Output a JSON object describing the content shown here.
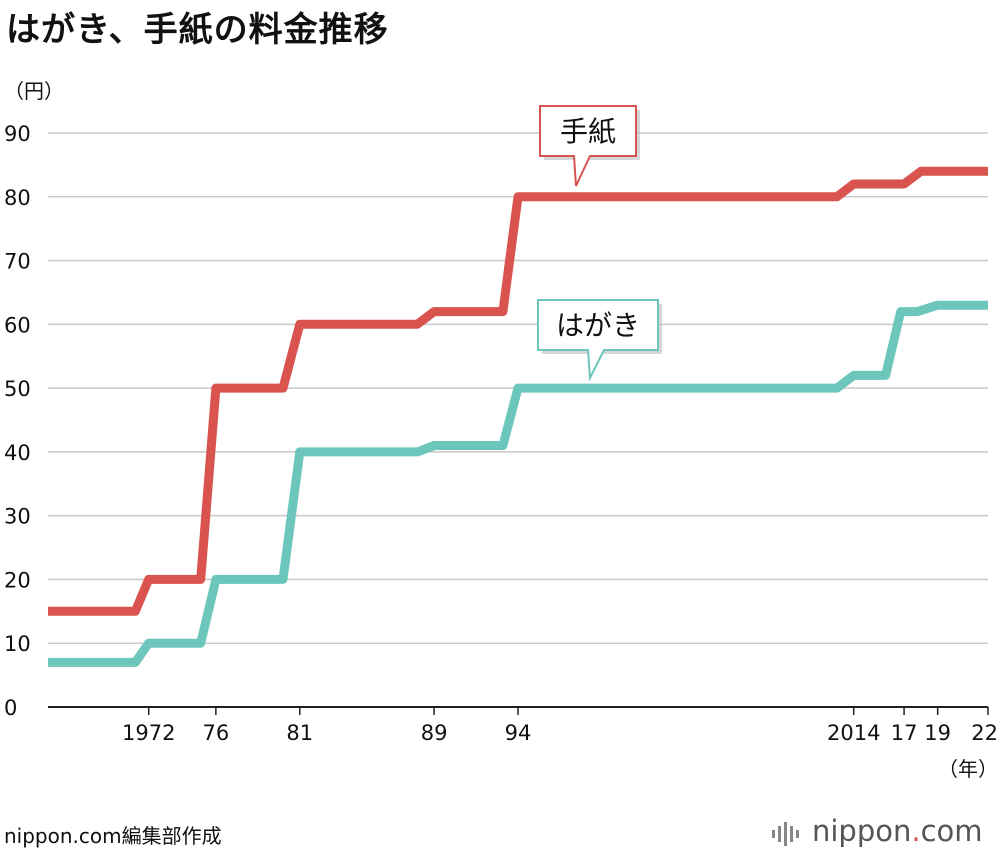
{
  "chart_data": {
    "type": "line",
    "title": "はがき、手紙の料金推移",
    "ylabel": "（円）",
    "xlabel": "（年）",
    "ylim": [
      0,
      90
    ],
    "yticks": [
      0,
      10,
      20,
      30,
      40,
      50,
      60,
      70,
      80,
      90
    ],
    "xlim": [
      1966,
      2022
    ],
    "xticks": [
      {
        "year": 1972,
        "label": "1972"
      },
      {
        "year": 1976,
        "label": "76"
      },
      {
        "year": 1981,
        "label": "81"
      },
      {
        "year": 1989,
        "label": "89"
      },
      {
        "year": 1994,
        "label": "94"
      },
      {
        "year": 2014,
        "label": "2014"
      },
      {
        "year": 2017,
        "label": "17"
      },
      {
        "year": 2019,
        "label": "19"
      },
      {
        "year": 2022,
        "label": "22"
      }
    ],
    "grid": true,
    "series": [
      {
        "name": "手紙",
        "color": "#d9534f",
        "points": [
          [
            1966,
            15
          ],
          [
            1971.2,
            15
          ],
          [
            1972,
            20
          ],
          [
            1975.1,
            20
          ],
          [
            1976,
            50
          ],
          [
            1980,
            50
          ],
          [
            1981,
            60
          ],
          [
            1988,
            60
          ],
          [
            1989,
            62
          ],
          [
            1993.1,
            62
          ],
          [
            1994,
            80
          ],
          [
            2013,
            80
          ],
          [
            2014,
            82
          ],
          [
            2017,
            82
          ],
          [
            2018,
            84
          ],
          [
            2022,
            84
          ]
        ]
      },
      {
        "name": "はがき",
        "color": "#6cc6bb",
        "points": [
          [
            1966,
            7
          ],
          [
            1971.2,
            7
          ],
          [
            1972,
            10
          ],
          [
            1975.1,
            10
          ],
          [
            1976,
            20
          ],
          [
            1980,
            20
          ],
          [
            1981,
            40
          ],
          [
            1988,
            40
          ],
          [
            1989,
            41
          ],
          [
            1993.1,
            41
          ],
          [
            1994,
            50
          ],
          [
            2013,
            50
          ],
          [
            2014,
            52
          ],
          [
            2015.9,
            52
          ],
          [
            2016.8,
            62
          ],
          [
            2017.8,
            62
          ],
          [
            2019,
            63
          ],
          [
            2022,
            63
          ]
        ]
      }
    ]
  },
  "credit": "nippon.com編集部作成",
  "logo": {
    "name": "nippon",
    "dot": ".",
    "tld": "com"
  }
}
